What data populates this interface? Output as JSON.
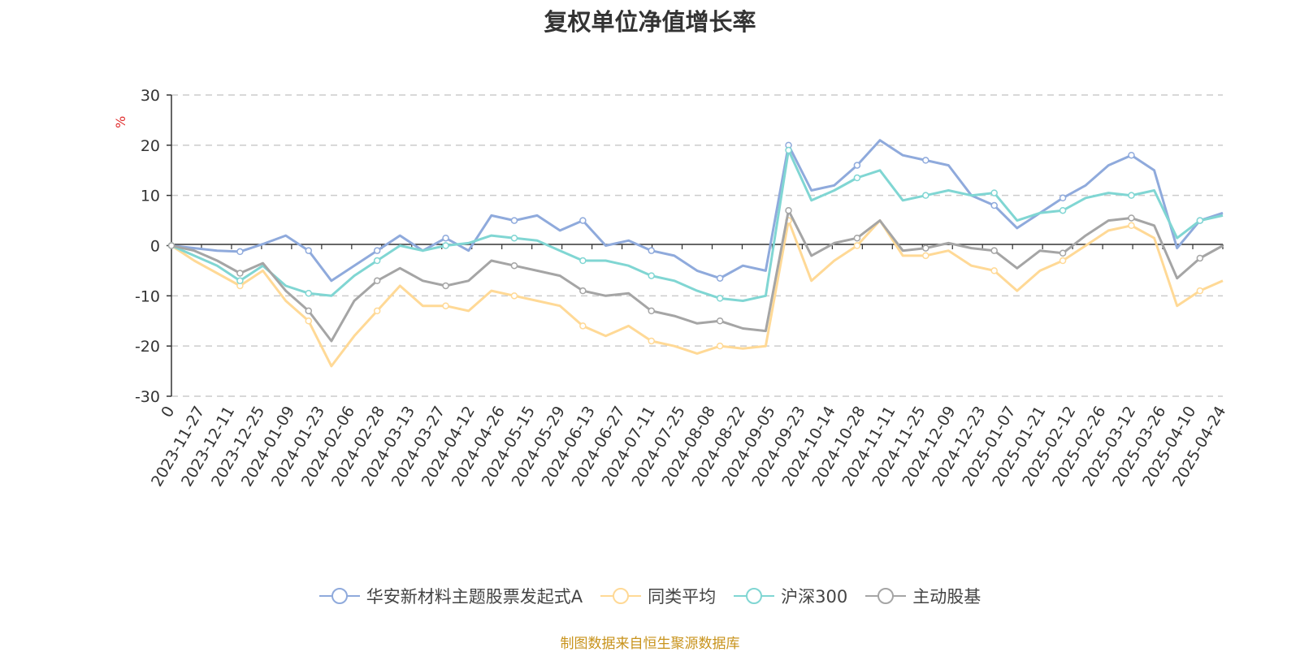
{
  "chart_data": {
    "type": "line",
    "title": "复权单位净值增长率",
    "ylabel": "%",
    "ylim": [
      -30,
      30
    ],
    "yticks": [
      30,
      20,
      10,
      0,
      -10,
      -20,
      -30
    ],
    "grid": true,
    "legend_position": "bottom",
    "source": "制图数据来自恒生聚源数据库",
    "x_tick_labels": [
      "0",
      "2023-11-27",
      "2023-12-11",
      "2023-12-25",
      "2024-01-09",
      "2024-01-23",
      "2024-02-06",
      "2024-02-28",
      "2024-03-13",
      "2024-03-27",
      "2024-04-12",
      "2024-04-26",
      "2024-05-15",
      "2024-05-29",
      "2024-06-13",
      "2024-06-27",
      "2024-07-11",
      "2024-07-25",
      "2024-08-08",
      "2024-08-22",
      "2024-09-05",
      "2024-09-23",
      "2024-10-14",
      "2024-10-28",
      "2024-11-11",
      "2024-11-25",
      "2024-12-09",
      "2024-12-23",
      "2025-01-07",
      "2025-01-21",
      "2025-02-12",
      "2025-02-26",
      "2025-03-12",
      "2025-03-26",
      "2025-04-10",
      "2025-04-24"
    ],
    "series": [
      {
        "name": "华安新材料主题股票发起式A",
        "color": "#8faadc",
        "values": [
          0,
          -0.5,
          -1.0,
          -1.2,
          0.3,
          2.0,
          -1.0,
          -7.0,
          -4.0,
          -1.0,
          2.0,
          -1.0,
          1.5,
          -1.0,
          6.0,
          5.0,
          6.0,
          3.0,
          5.0,
          0,
          1.0,
          -1.0,
          -2.0,
          -5.0,
          -6.5,
          -4.0,
          -5.0,
          20.0,
          11.0,
          12.0,
          16.0,
          21.0,
          18.0,
          17.0,
          16.0,
          10.0,
          8.0,
          3.5,
          6.5,
          9.5,
          12.0,
          16.0,
          18.0,
          15.0,
          -0.5,
          5.0,
          6.5
        ]
      },
      {
        "name": "同类平均",
        "color": "#ffd996",
        "values": [
          0,
          -3.0,
          -5.5,
          -8.0,
          -5.0,
          -11.0,
          -15.0,
          -24.0,
          -18.0,
          -13.0,
          -8.0,
          -12.0,
          -12.0,
          -13.0,
          -9.0,
          -10.0,
          -11.0,
          -12.0,
          -16.0,
          -18.0,
          -16.0,
          -19.0,
          -20.0,
          -21.5,
          -20.0,
          -20.5,
          -20.0,
          5.0,
          -7.0,
          -3.0,
          0,
          5.0,
          -2.0,
          -2.0,
          -1.0,
          -4.0,
          -5.0,
          -9.0,
          -5.0,
          -3.0,
          0,
          3.0,
          4.0,
          1.5,
          -12.0,
          -9.0,
          -7.0
        ]
      },
      {
        "name": "沪深300",
        "color": "#80d6d3",
        "values": [
          0,
          -2.0,
          -4.0,
          -7.0,
          -4.0,
          -8.0,
          -9.5,
          -10.0,
          -6.0,
          -3.0,
          0,
          -1.0,
          0,
          0.5,
          2.0,
          1.5,
          1.0,
          -1.0,
          -3.0,
          -3.0,
          -4.0,
          -6.0,
          -7.0,
          -9.0,
          -10.5,
          -11.0,
          -10.0,
          19.0,
          9.0,
          11.0,
          13.5,
          15.0,
          9.0,
          10.0,
          11.0,
          10.0,
          10.5,
          5.0,
          6.5,
          7.0,
          9.5,
          10.5,
          10.0,
          11.0,
          1.5,
          5.0,
          6.0
        ]
      },
      {
        "name": "主动股基",
        "color": "#a5a5a5",
        "values": [
          0,
          -1.0,
          -3.0,
          -5.5,
          -3.5,
          -9.0,
          -13.0,
          -19.0,
          -11.0,
          -7.0,
          -4.5,
          -7.0,
          -8.0,
          -7.0,
          -3.0,
          -4.0,
          -5.0,
          -6.0,
          -9.0,
          -10.0,
          -9.5,
          -13.0,
          -14.0,
          -15.5,
          -15.0,
          -16.5,
          -17.0,
          7.0,
          -2.0,
          0.5,
          1.5,
          5.0,
          -1.0,
          -0.5,
          0.5,
          -0.5,
          -1.0,
          -4.5,
          -1.0,
          -1.5,
          2.0,
          5.0,
          5.5,
          4.0,
          -6.5,
          -2.5,
          0
        ]
      }
    ]
  }
}
